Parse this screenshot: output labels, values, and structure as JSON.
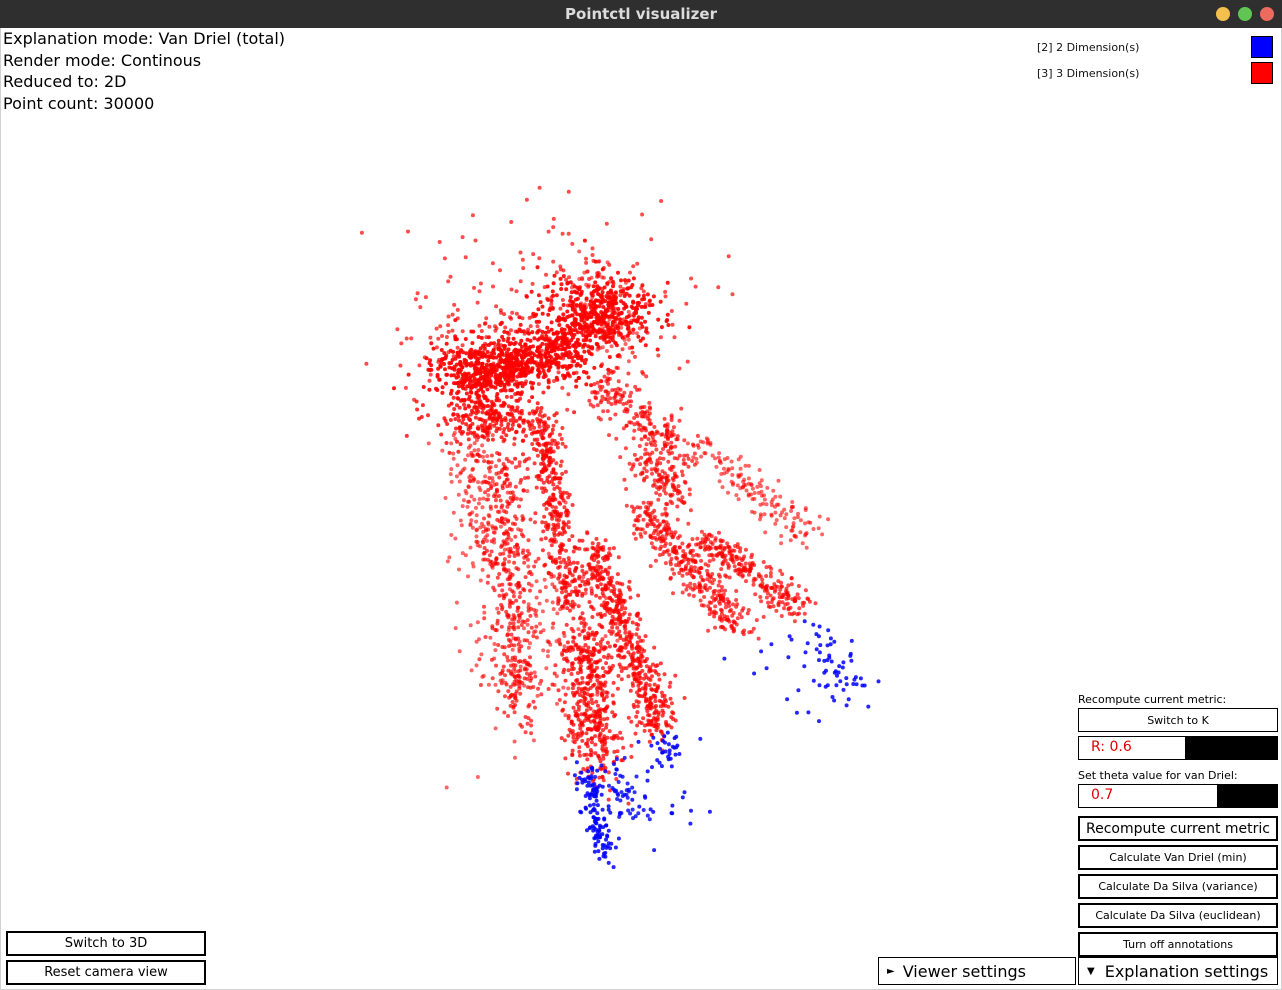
{
  "window": {
    "title": "Pointctl visualizer",
    "buttons": [
      {
        "name": "minimize",
        "color": "#f5bf4f"
      },
      {
        "name": "maximize",
        "color": "#61c554"
      },
      {
        "name": "close",
        "color": "#ed6a5e"
      }
    ]
  },
  "info": {
    "explanation_mode": "Explanation mode: Van Driel (total)",
    "render_mode": "Render mode: Continous",
    "reduced_to": "Reduced to: 2D",
    "point_count": "Point count: 30000"
  },
  "legend": [
    {
      "label": "[2] 2 Dimension(s)",
      "color": "#0000ff"
    },
    {
      "label": "[3] 3 Dimension(s)",
      "color": "#ff0000"
    }
  ],
  "panel": {
    "recompute_label": "Recompute current metric:",
    "switch_k": "Switch to K",
    "r_slider": {
      "text": "R: 0.6",
      "value": 0.6
    },
    "theta_label": "Set theta value for van Driel:",
    "theta_slider": {
      "text": "0.7",
      "value": 0.7
    },
    "recompute_button": "Recompute current metric",
    "van_driel_min": "Calculate Van Driel (min)",
    "da_silva_variance": "Calculate Da Silva (variance)",
    "da_silva_euclidean": "Calculate Da Silva (euclidean)",
    "annotations": "Turn off annotations"
  },
  "left_buttons": {
    "switch_3d": "Switch to 3D",
    "reset_camera": "Reset camera view"
  },
  "tabs": {
    "viewer": {
      "label": "Viewer settings",
      "arrow": "►"
    },
    "explanation": {
      "label": "Explanation settings",
      "arrow": "▼"
    }
  },
  "scatter": {
    "colors": {
      "red": "#ff0000",
      "blue": "#0000ff"
    }
  }
}
